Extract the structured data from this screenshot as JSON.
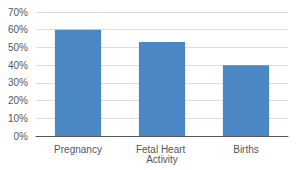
{
  "chart_data": {
    "type": "bar",
    "categories": [
      "Pregnancy",
      "Fetal Heart Activity",
      "Births"
    ],
    "values": [
      60,
      53,
      40
    ],
    "color": "#4B87C5",
    "ylim": [
      0,
      70
    ],
    "yticks": [
      {
        "value": 0,
        "label": "0%"
      },
      {
        "value": 10,
        "label": "10%"
      },
      {
        "value": 20,
        "label": "20%"
      },
      {
        "value": 30,
        "label": "30%"
      },
      {
        "value": 40,
        "label": "40%"
      },
      {
        "value": 50,
        "label": "50%"
      },
      {
        "value": 60,
        "label": "60%"
      },
      {
        "value": 70,
        "label": "70%"
      }
    ],
    "grid": true
  }
}
